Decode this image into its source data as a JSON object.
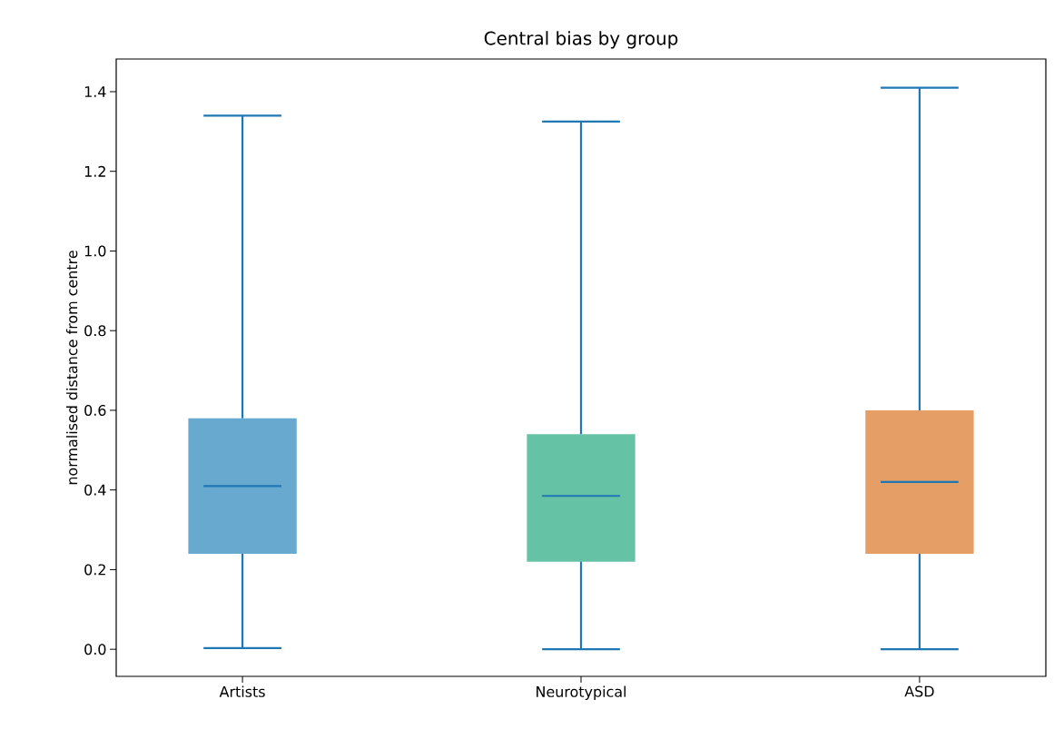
{
  "chart_data": {
    "type": "box",
    "title": "Central bias by group",
    "ylabel": "normalised distance from centre",
    "categories": [
      "Artists",
      "Neurotypical",
      "ASD"
    ],
    "colors": [
      "#67a9cf",
      "#66c2a5",
      "#e59e66"
    ],
    "boxes": [
      {
        "low": 0.003,
        "q1": 0.24,
        "median": 0.41,
        "q3": 0.58,
        "high": 1.34
      },
      {
        "low": 0.0,
        "q1": 0.22,
        "median": 0.385,
        "q3": 0.54,
        "high": 1.325
      },
      {
        "low": 0.0,
        "q1": 0.24,
        "median": 0.42,
        "q3": 0.6,
        "high": 1.41
      }
    ],
    "ylim": [
      -0.068,
      1.482
    ],
    "yticks": [
      {
        "value": 0,
        "label": "0.0"
      },
      {
        "value": 0.2,
        "label": "0.2"
      },
      {
        "value": 0.4,
        "label": "0.4"
      },
      {
        "value": 0.6,
        "label": "0.6"
      },
      {
        "value": 0.8,
        "label": "0.8"
      },
      {
        "value": 1,
        "label": "1.0"
      },
      {
        "value": 1.2,
        "label": "1.2"
      },
      {
        "value": 1.4,
        "label": "1.4"
      }
    ]
  }
}
